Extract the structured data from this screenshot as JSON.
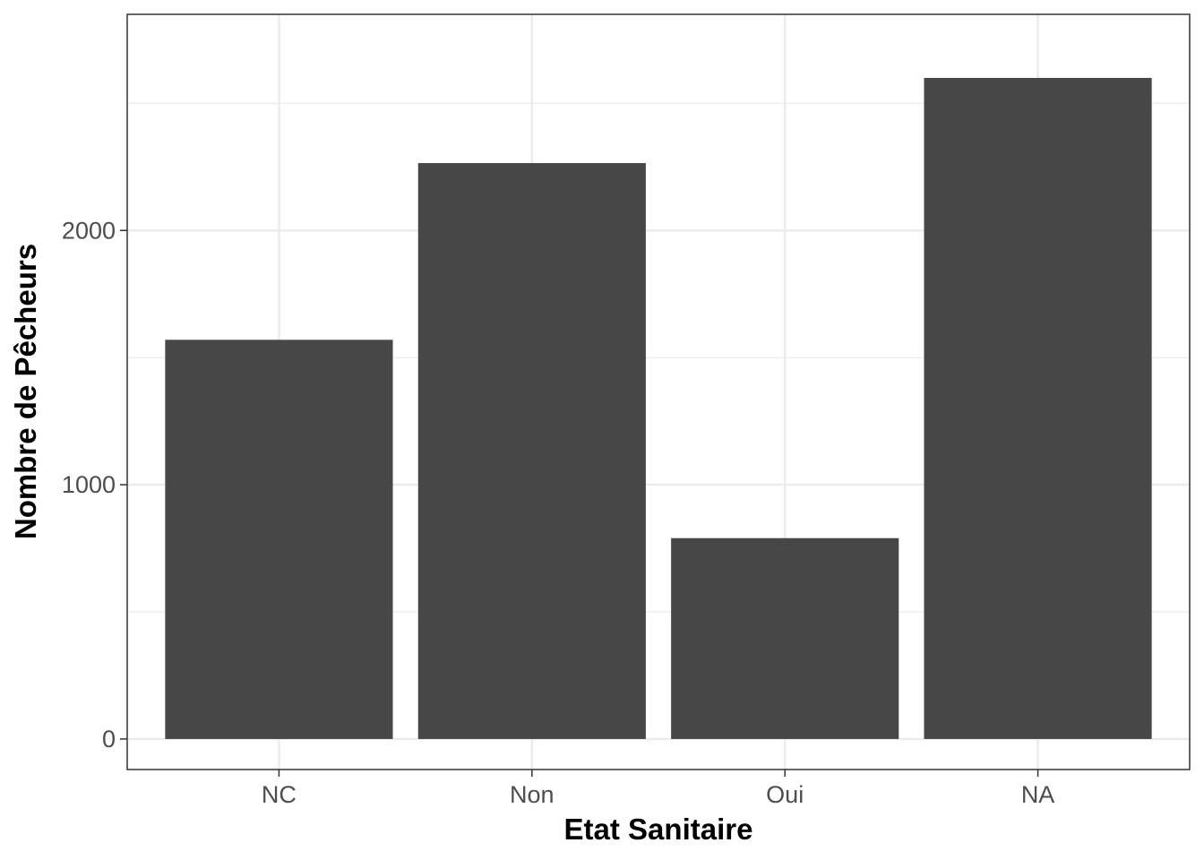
{
  "chart_data": {
    "type": "bar",
    "title": "",
    "xlabel": "Etat Sanitaire",
    "ylabel": "Nombre de Pêcheurs",
    "categories": [
      "NC",
      "Non",
      "Oui",
      "NA"
    ],
    "values": [
      1570,
      2265,
      790,
      2600
    ],
    "ylim": [
      -120,
      2850
    ],
    "yticks": [
      0,
      1000,
      2000
    ],
    "ytick_labels": [
      "0",
      "1000",
      "2000"
    ],
    "grid": true,
    "legend": "none",
    "bar_color": "#474747",
    "grid_color": "#ebebeb"
  }
}
